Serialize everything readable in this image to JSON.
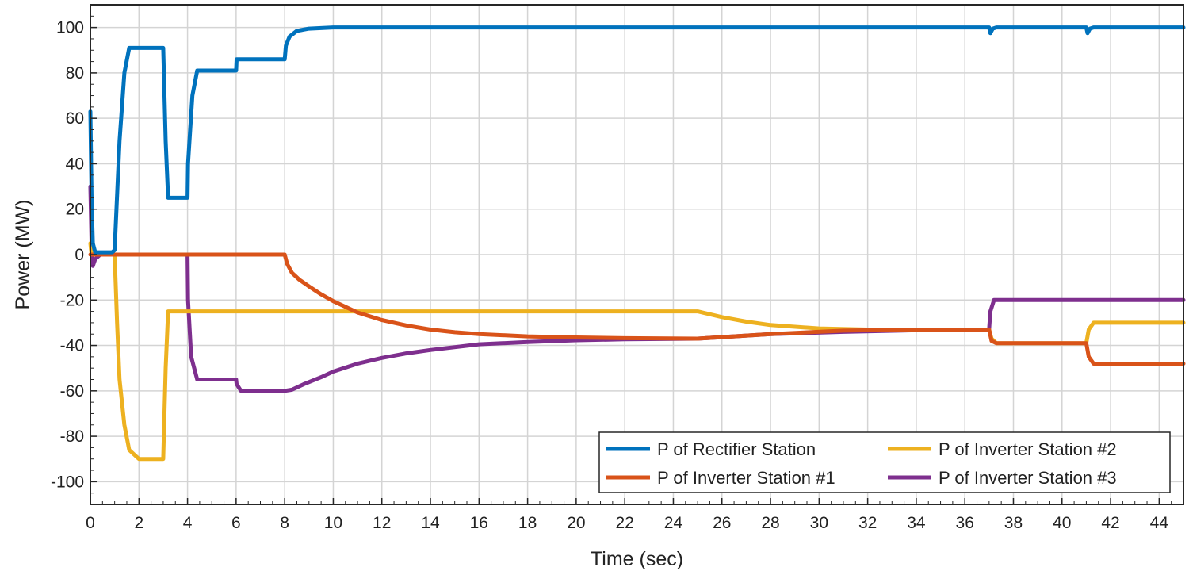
{
  "chart_data": {
    "type": "line",
    "title": "",
    "xlabel": "Time (sec)",
    "ylabel": "Power (MW)",
    "xlim": [
      0,
      45
    ],
    "ylim": [
      -110,
      110
    ],
    "xticks": [
      0,
      2,
      4,
      6,
      8,
      10,
      12,
      14,
      16,
      18,
      20,
      22,
      24,
      26,
      28,
      30,
      32,
      34,
      36,
      38,
      40,
      42,
      44
    ],
    "yticks": [
      100,
      80,
      60,
      40,
      20,
      0,
      -20,
      -40,
      -60,
      -80,
      -100
    ],
    "grid": true,
    "legend": "bottom-right",
    "series": [
      {
        "name": "P of Rectifier Station",
        "color": "#0072BD",
        "x": [
          0,
          0.05,
          0.1,
          0.2,
          0.5,
          0.9,
          1.0,
          1.2,
          1.4,
          1.6,
          3.0,
          3.1,
          3.2,
          4.0,
          4.02,
          4.2,
          4.4,
          6.0,
          6.02,
          6.3,
          8.0,
          8.05,
          8.2,
          8.5,
          9.0,
          10.0,
          37.0,
          37.05,
          37.15,
          37.3,
          41.0,
          41.05,
          41.15,
          41.3,
          45.0
        ],
        "y": [
          63,
          25,
          5,
          1,
          1,
          1,
          2,
          50,
          80,
          91,
          91,
          50,
          25,
          25,
          40,
          70,
          81,
          81,
          86,
          86,
          86,
          92,
          96,
          98.5,
          99.5,
          100,
          100,
          97.5,
          99.5,
          100,
          100,
          97.5,
          99.5,
          100,
          100
        ]
      },
      {
        "name": "P of Inverter Station #1",
        "color": "#D95319",
        "x": [
          0,
          0.1,
          0.3,
          8.0,
          8.1,
          8.3,
          8.6,
          9.0,
          9.5,
          10.0,
          11.0,
          12.0,
          13.0,
          14.0,
          15.0,
          16.0,
          18.0,
          20.0,
          22.0,
          25.0,
          28.0,
          31.0,
          34.0,
          37.0,
          37.1,
          37.3,
          41.0,
          41.1,
          41.3,
          45.0
        ],
        "y": [
          0,
          0,
          0,
          0,
          -4,
          -8,
          -11,
          -14,
          -17.5,
          -20.5,
          -25.5,
          -28.8,
          -31.2,
          -33,
          -34.2,
          -35,
          -36,
          -36.5,
          -36.8,
          -37,
          -35,
          -33.5,
          -33,
          -33,
          -38,
          -39,
          -39,
          -45,
          -48,
          -48
        ]
      },
      {
        "name": "P of Inverter Station #2",
        "color": "#EDB120",
        "x": [
          0,
          0.05,
          0.15,
          0.3,
          1.0,
          1.1,
          1.2,
          1.4,
          1.6,
          2.0,
          3.0,
          3.1,
          3.2,
          4.0,
          8.0,
          25.0,
          26.0,
          27.0,
          28.0,
          30.0,
          32.0,
          35.0,
          37.0,
          37.1,
          37.3,
          41.0,
          41.1,
          41.3,
          45.0
        ],
        "y": [
          5,
          0,
          0,
          0,
          0,
          -30,
          -55,
          -75,
          -86,
          -90,
          -90,
          -50,
          -25,
          -25,
          -25,
          -25,
          -27.5,
          -29.5,
          -31,
          -32.5,
          -33,
          -33,
          -33,
          -37,
          -39,
          -39,
          -33,
          -30,
          -30
        ]
      },
      {
        "name": "P of Inverter Station #3",
        "color": "#7E2F8E",
        "x": [
          0,
          0.05,
          0.1,
          0.2,
          0.4,
          1.0,
          4.0,
          4.02,
          4.15,
          4.4,
          6.0,
          6.02,
          6.2,
          8.0,
          8.3,
          8.8,
          9.5,
          10.0,
          11.0,
          12.0,
          13.0,
          14.0,
          16.0,
          18.0,
          20.0,
          22.0,
          25.0,
          28.0,
          31.0,
          34.0,
          37.0,
          37.05,
          37.2,
          45.0
        ],
        "y": [
          30,
          5,
          -5,
          -2,
          0,
          0,
          0,
          -20,
          -45,
          -55,
          -55,
          -57,
          -60,
          -60,
          -59.5,
          -57,
          -54,
          -51.5,
          -48,
          -45.5,
          -43.5,
          -42,
          -39.5,
          -38.5,
          -37.7,
          -37.3,
          -37,
          -35,
          -34,
          -33.3,
          -33,
          -25,
          -20,
          -20
        ]
      }
    ]
  }
}
